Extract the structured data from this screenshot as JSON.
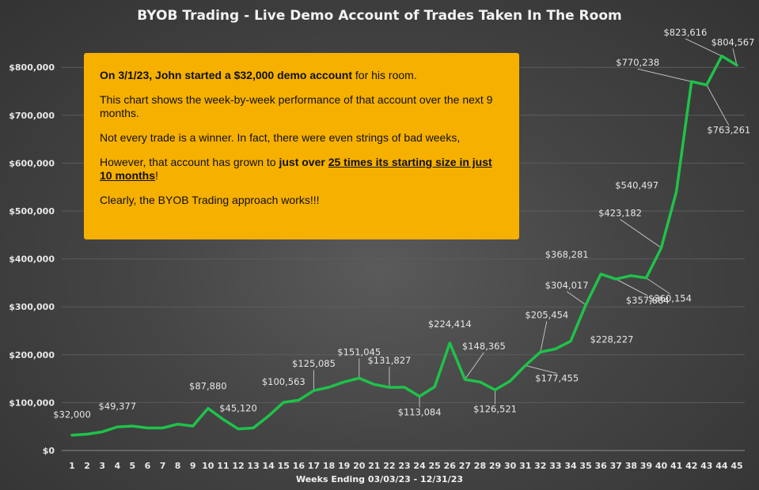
{
  "chart_data": {
    "type": "line",
    "title": "BYOB Trading - Live Demo Account of Trades Taken In The Room",
    "xlabel": "Weeks Ending 03/03/23 - 12/31/23",
    "ylabel": "",
    "ylim": [
      0,
      850000
    ],
    "y_ticks": [
      "$0",
      "$100,000",
      "$200,000",
      "$300,000",
      "$400,000",
      "$500,000",
      "$600,000",
      "$700,000",
      "$800,000"
    ],
    "y_tick_values": [
      0,
      100000,
      200000,
      300000,
      400000,
      500000,
      600000,
      700000,
      800000
    ],
    "grid": true,
    "line_color": "#1fc24a",
    "categories": [
      "1",
      "2",
      "3",
      "4",
      "5",
      "6",
      "7",
      "8",
      "9",
      "10",
      "11",
      "12",
      "13",
      "14",
      "15",
      "16",
      "17",
      "18",
      "19",
      "20",
      "21",
      "22",
      "23",
      "24",
      "25",
      "26",
      "27",
      "28",
      "29",
      "30",
      "31",
      "32",
      "33",
      "34",
      "35",
      "36",
      "37",
      "38",
      "39",
      "40",
      "41",
      "42",
      "43",
      "44",
      "45"
    ],
    "series": [
      {
        "values": [
          32000,
          34000,
          39000,
          49377,
          51000,
          47000,
          47000,
          55000,
          51000,
          87880,
          65000,
          45120,
          47000,
          72000,
          100563,
          105000,
          125085,
          132000,
          143000,
          151045,
          138000,
          131827,
          132000,
          113084,
          133000,
          224414,
          148365,
          143000,
          126521,
          145000,
          177455,
          205454,
          212000,
          228227,
          304017,
          368281,
          357884,
          365000,
          360154,
          423182,
          540497,
          770238,
          763261,
          823616,
          804567
        ]
      }
    ],
    "data_labels": [
      {
        "index": 0,
        "text": "$32,000"
      },
      {
        "index": 3,
        "text": "$49,377"
      },
      {
        "index": 9,
        "text": "$87,880"
      },
      {
        "index": 11,
        "text": "$45,120"
      },
      {
        "index": 14,
        "text": "$100,563"
      },
      {
        "index": 16,
        "text": "$125,085"
      },
      {
        "index": 19,
        "text": "$151,045"
      },
      {
        "index": 21,
        "text": "$131,827"
      },
      {
        "index": 23,
        "text": "$113,084"
      },
      {
        "index": 25,
        "text": "$224,414"
      },
      {
        "index": 26,
        "text": "$148,365"
      },
      {
        "index": 28,
        "text": "$126,521"
      },
      {
        "index": 30,
        "text": "$177,455"
      },
      {
        "index": 31,
        "text": "$205,454"
      },
      {
        "index": 33,
        "text": "$228,227"
      },
      {
        "index": 34,
        "text": "$304,017"
      },
      {
        "index": 35,
        "text": "$368,281"
      },
      {
        "index": 36,
        "text": "$357,884"
      },
      {
        "index": 38,
        "text": "$360,154"
      },
      {
        "index": 39,
        "text": "$423,182"
      },
      {
        "index": 40,
        "text": "$540,497"
      },
      {
        "index": 41,
        "text": "$770,238"
      },
      {
        "index": 42,
        "text": "$763,261"
      },
      {
        "index": 43,
        "text": "$823,616"
      },
      {
        "index": 44,
        "text": "$804,567"
      }
    ]
  },
  "note": {
    "p1_bold": "On 3/1/23, John started a $32,000 demo account",
    "p1_rest": " for his room.",
    "p2": "This chart shows the week-by-week performance of that account over the next 9 months.",
    "p3": "Not every trade is a winner.  In fact, there were even strings of bad weeks,",
    "p4_start": "However, that account has grown to ",
    "p4_bold": "just over ",
    "p4_underline": "25 times its starting size in just 10 months",
    "p4_end": "!",
    "p5": "Clearly, the BYOB Trading approach works!!!"
  }
}
